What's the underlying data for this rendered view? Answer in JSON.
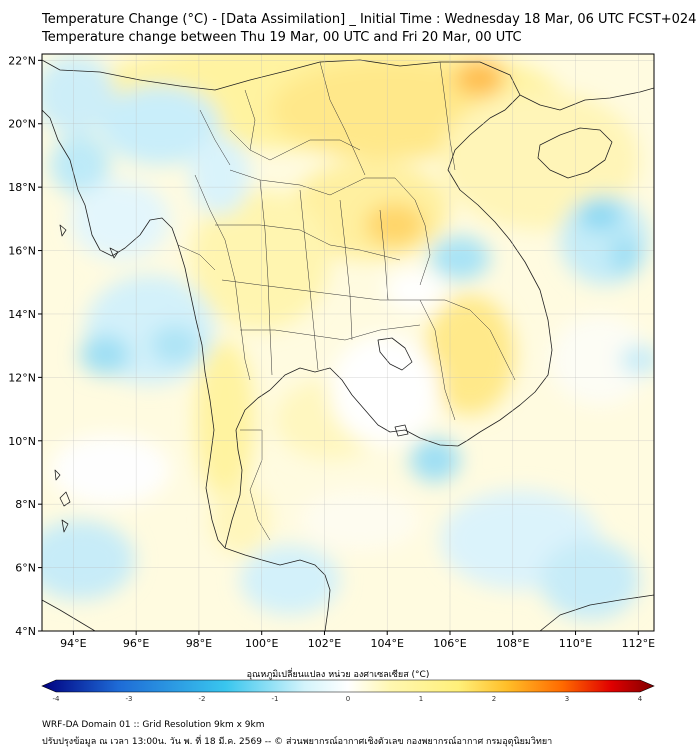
{
  "title_line1": "Temperature Change (°C) - [Data Assimilation] _ Initial Time : Wednesday 18 Mar, 06 UTC FCST+024",
  "title_line2": "Temperature change between Thu 19 Mar, 00 UTC and Fri 20 Mar, 00 UTC",
  "map": {
    "lon_range": [
      93,
      112.5
    ],
    "lat_range": [
      4,
      22.2
    ],
    "lon_ticks": [
      "94°E",
      "96°E",
      "98°E",
      "100°E",
      "102°E",
      "104°E",
      "106°E",
      "108°E",
      "110°E",
      "112°E"
    ],
    "lon_tick_values": [
      94,
      96,
      98,
      100,
      102,
      104,
      106,
      108,
      110,
      112
    ],
    "lat_ticks": [
      "22°N",
      "20°N",
      "18°N",
      "16°N",
      "14°N",
      "12°N",
      "10°N",
      "8°N",
      "6°N",
      "4°N"
    ],
    "lat_tick_values": [
      22,
      20,
      18,
      16,
      14,
      12,
      10,
      8,
      6,
      4
    ],
    "grid": true
  },
  "colorbar": {
    "label": "อุณหภูมิเปลี่ยนแปลง หน่วย องศาเซลเซียส (°C)",
    "range": [
      -4,
      4
    ],
    "tick_labels": [
      "-4",
      "-3",
      "-2",
      "-1",
      "0",
      "1",
      "2",
      "3",
      "4"
    ],
    "tick_values": [
      -4,
      -3,
      -2,
      -1,
      0,
      1,
      2,
      3,
      4
    ],
    "colors": {
      "min": "#000080",
      "low": "#1e6bd6",
      "cool": "#39c6ee",
      "zero": "#ffffff",
      "warm": "#fff07a",
      "mid": "#ffbe28",
      "high": "#ff6a00",
      "max": "#800000"
    }
  },
  "footer_line1": "WRF-DA Domain 01 :: Grid Resolution 9km x 9km",
  "footer_line2": "ปรับปรุงข้อมูล ณ เวลา 13:00น. วัน พ. ที่ 18 มี.ค. 2569 -- © ส่วนพยากรณ์อากาศเชิงตัวเลข กองพยากรณ์อากาศ กรมอุตุนิยมวิทยา"
}
